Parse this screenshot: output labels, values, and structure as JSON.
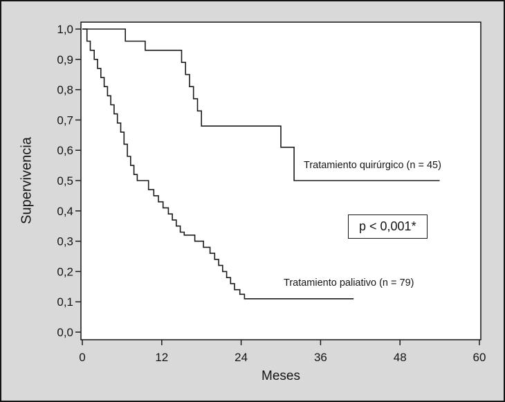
{
  "chart_data": {
    "type": "line",
    "subtype": "kaplan-meier-step",
    "title": "",
    "xlabel": "Meses",
    "ylabel": "Supervivencia",
    "xlim": [
      0,
      60
    ],
    "ylim": [
      0,
      1
    ],
    "xticks": [
      0,
      12,
      24,
      36,
      48,
      60
    ],
    "xtick_labels": [
      "0",
      "12",
      "24",
      "36",
      "48",
      "60"
    ],
    "yticks": [
      0,
      0.1,
      0.2,
      0.3,
      0.4,
      0.5,
      0.6,
      0.7,
      0.8,
      0.9,
      1.0
    ],
    "ytick_labels": [
      "0,0",
      "0,1",
      "0,2",
      "0,3",
      "0,4",
      "0,5",
      "0,6",
      "0,7",
      "0,8",
      "0,9",
      "1,0"
    ],
    "grid": false,
    "legend_position": "inline-annotations",
    "line_color": "#1a1a1a",
    "annotations": [
      {
        "text": "p < 0,001*",
        "boxed": true
      }
    ],
    "series": [
      {
        "name": "Tratamiento quirúrgico (n = 45)",
        "n": 45,
        "points": [
          [
            0,
            1.0
          ],
          [
            6.5,
            1.0
          ],
          [
            6.5,
            0.96
          ],
          [
            9.5,
            0.96
          ],
          [
            9.5,
            0.93
          ],
          [
            15,
            0.93
          ],
          [
            15,
            0.89
          ],
          [
            15.6,
            0.89
          ],
          [
            15.6,
            0.85
          ],
          [
            16.2,
            0.85
          ],
          [
            16.2,
            0.81
          ],
          [
            16.8,
            0.81
          ],
          [
            16.8,
            0.77
          ],
          [
            17.4,
            0.77
          ],
          [
            17.4,
            0.73
          ],
          [
            18,
            0.73
          ],
          [
            18,
            0.68
          ],
          [
            30,
            0.68
          ],
          [
            30,
            0.61
          ],
          [
            32,
            0.61
          ],
          [
            32,
            0.5
          ],
          [
            54,
            0.5
          ]
        ]
      },
      {
        "name": "Tratamiento paliativo (n = 79)",
        "n": 79,
        "points": [
          [
            0,
            1.0
          ],
          [
            0.7,
            1.0
          ],
          [
            0.7,
            0.96
          ],
          [
            1.2,
            0.96
          ],
          [
            1.2,
            0.93
          ],
          [
            1.8,
            0.93
          ],
          [
            1.8,
            0.9
          ],
          [
            2.3,
            0.9
          ],
          [
            2.3,
            0.87
          ],
          [
            2.8,
            0.87
          ],
          [
            2.8,
            0.84
          ],
          [
            3.3,
            0.84
          ],
          [
            3.3,
            0.81
          ],
          [
            3.8,
            0.81
          ],
          [
            3.8,
            0.78
          ],
          [
            4.3,
            0.78
          ],
          [
            4.3,
            0.75
          ],
          [
            4.8,
            0.75
          ],
          [
            4.8,
            0.72
          ],
          [
            5.3,
            0.72
          ],
          [
            5.3,
            0.69
          ],
          [
            5.8,
            0.69
          ],
          [
            5.8,
            0.66
          ],
          [
            6.3,
            0.66
          ],
          [
            6.3,
            0.62
          ],
          [
            6.8,
            0.62
          ],
          [
            6.8,
            0.58
          ],
          [
            7.3,
            0.58
          ],
          [
            7.3,
            0.55
          ],
          [
            7.8,
            0.55
          ],
          [
            7.8,
            0.52
          ],
          [
            8.3,
            0.52
          ],
          [
            8.3,
            0.5
          ],
          [
            10,
            0.5
          ],
          [
            10,
            0.47
          ],
          [
            10.8,
            0.47
          ],
          [
            10.8,
            0.45
          ],
          [
            11.5,
            0.45
          ],
          [
            11.5,
            0.43
          ],
          [
            12.2,
            0.43
          ],
          [
            12.2,
            0.41
          ],
          [
            13,
            0.41
          ],
          [
            13,
            0.39
          ],
          [
            13.6,
            0.39
          ],
          [
            13.6,
            0.37
          ],
          [
            14.2,
            0.37
          ],
          [
            14.2,
            0.35
          ],
          [
            14.8,
            0.35
          ],
          [
            14.8,
            0.33
          ],
          [
            15.4,
            0.33
          ],
          [
            15.4,
            0.32
          ],
          [
            17,
            0.32
          ],
          [
            17,
            0.3
          ],
          [
            18.3,
            0.3
          ],
          [
            18.3,
            0.28
          ],
          [
            19.3,
            0.28
          ],
          [
            19.3,
            0.26
          ],
          [
            20,
            0.26
          ],
          [
            20,
            0.24
          ],
          [
            20.6,
            0.24
          ],
          [
            20.6,
            0.22
          ],
          [
            21.2,
            0.22
          ],
          [
            21.2,
            0.2
          ],
          [
            21.8,
            0.2
          ],
          [
            21.8,
            0.18
          ],
          [
            22.4,
            0.18
          ],
          [
            22.4,
            0.16
          ],
          [
            23,
            0.16
          ],
          [
            23,
            0.14
          ],
          [
            23.8,
            0.14
          ],
          [
            23.8,
            0.125
          ],
          [
            24.5,
            0.125
          ],
          [
            24.5,
            0.11
          ],
          [
            41,
            0.11
          ]
        ]
      }
    ]
  }
}
